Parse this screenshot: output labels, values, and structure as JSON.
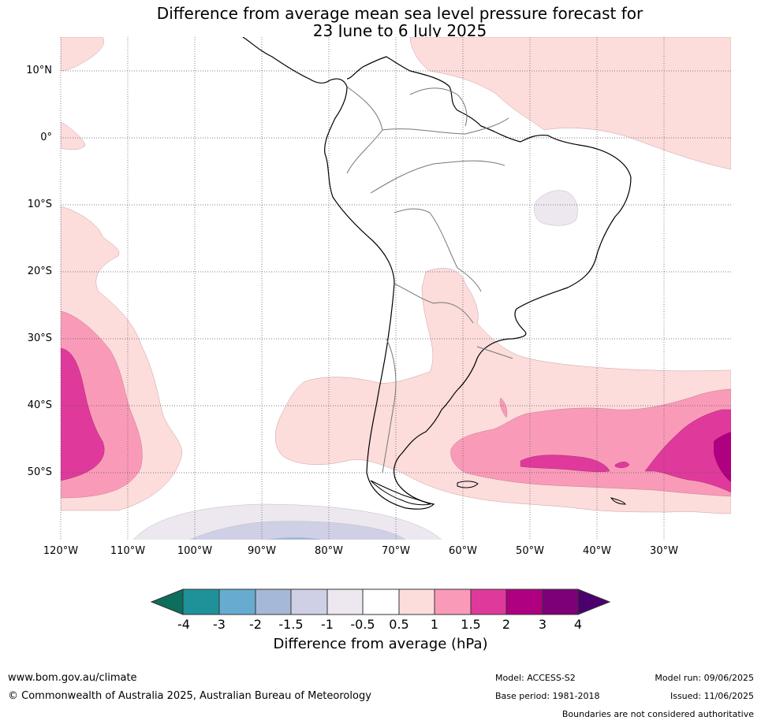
{
  "title": {
    "line1": "Difference from average mean sea level pressure forecast for",
    "line2": "23 June to 6 July 2025"
  },
  "map": {
    "lat_labels": [
      "10°N",
      "0°",
      "10°S",
      "20°S",
      "30°S",
      "40°S",
      "50°S"
    ],
    "lon_labels": [
      "120°W",
      "110°W",
      "100°W",
      "90°W",
      "80°W",
      "70°W",
      "60°W",
      "50°W",
      "40°W",
      "30°W"
    ],
    "extent": {
      "lon_min": -120,
      "lon_max": -20,
      "lat_min": -60,
      "lat_max": 15
    }
  },
  "colorbar": {
    "label": "Difference from average (hPa)",
    "ticks": [
      "-4",
      "-3",
      "-2",
      "-1.5",
      "-1",
      "-0.5",
      "0.5",
      "1",
      "1.5",
      "2",
      "3",
      "4"
    ],
    "colors": [
      "#0e6e5c",
      "#1f9199",
      "#67abd0",
      "#a6b8d8",
      "#cfd0e6",
      "#ede8ef",
      "#ffffff",
      "#fddcdc",
      "#f99bb8",
      "#df3a9b",
      "#ae0080",
      "#7d0078",
      "#4b006e"
    ]
  },
  "footer": {
    "website": "www.bom.gov.au/climate",
    "copyright": "© Commonwealth of Australia 2025, Australian Bureau of Meteorology",
    "model": "Model: ACCESS-S2",
    "base_period": "Base period: 1981-2018",
    "model_run": "Model run: 09/06/2025",
    "issued": "Issued: 11/06/2025",
    "disclaimer": "Boundaries are not considered authoritative"
  }
}
